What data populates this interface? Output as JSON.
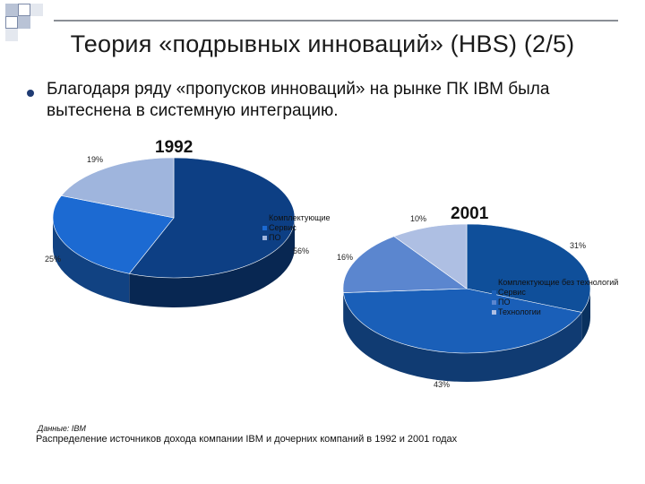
{
  "slide": {
    "title": "Теория «подрывных инноваций» (HBS) (2/5)",
    "bullet": "Благодаря ряду «пропусков инноваций» на рынке ПК IBM была вытеснена в системную интеграцию.",
    "source": "Данные: IBM",
    "caption": "Распределение источников дохода компании IBM и дочерних компаний в 1992 и 2001 годах"
  },
  "colors": {
    "navy": "#1f3b73",
    "series_1992": [
      "#0d3f84",
      "#1c6ad2",
      "#9fb5dd"
    ],
    "series_2001": [
      "#0f4f9a",
      "#1a5fb8",
      "#5b86cf",
      "#aebfe3"
    ]
  },
  "chart_data": [
    {
      "type": "pie",
      "title": "1992",
      "categories": [
        "Комплектующие",
        "Сервис",
        "ПО"
      ],
      "values": [
        56,
        25,
        19
      ],
      "labels": [
        "56%",
        "25%",
        "19%"
      ]
    },
    {
      "type": "pie",
      "title": "2001",
      "categories": [
        "Комплектующие без технологий",
        "Сервис",
        "ПО",
        "Технологии"
      ],
      "values": [
        31,
        43,
        16,
        10
      ],
      "labels": [
        "31%",
        "43%",
        "16%",
        "10%"
      ]
    }
  ]
}
